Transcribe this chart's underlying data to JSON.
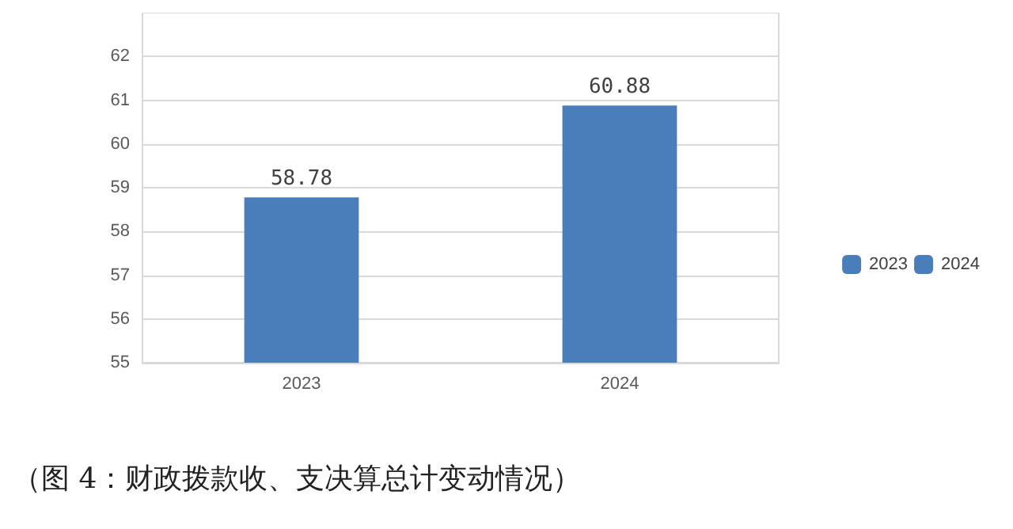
{
  "chart_data": {
    "type": "bar",
    "categories": [
      "2023",
      "2024"
    ],
    "stacked": true,
    "series": [
      {
        "name": "2023",
        "color": "#4a7ebb",
        "values": [
          58.78,
          null
        ]
      },
      {
        "name": "2024",
        "color": "#4a7ebb",
        "values": [
          null,
          60.88
        ]
      }
    ],
    "ylim": [
      55,
      63
    ],
    "yticks": [
      55,
      56,
      57,
      58,
      59,
      60,
      61,
      62
    ],
    "grid": "y",
    "legend": "right",
    "data_labels": true,
    "annotations": [
      "（图 4：财政拨款收、支决算总计变动情况）"
    ]
  }
}
